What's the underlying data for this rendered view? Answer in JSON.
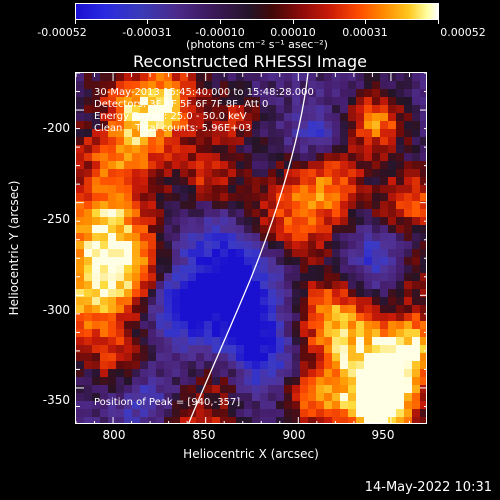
{
  "colorbar": {
    "tick_labels": [
      "-0.00052",
      "-0.00031",
      "-0.00010",
      "0.00010",
      "0.00031",
      "0.00052"
    ],
    "unit_label": "(photons cm⁻² s⁻¹ asec⁻²)"
  },
  "title": "Reconstructed RHESSI Image",
  "info": {
    "time_range": "30-May-2013 15:45:40.000 to 15:48:28.000",
    "detectors": "Detectors: 3F 4F 5F 6F 7F 8F, Att 0",
    "energy_range": "Energy Range: 25.0 - 50.0 keV",
    "clean": "Clean    Total counts: 5.96E+03",
    "peak": "Position of Peak = [940,-357]"
  },
  "axes": {
    "xlabel": "Heliocentric X (arcsec)",
    "ylabel": "Heliocentric Y (arcsec)",
    "xticks": [
      "800",
      "850",
      "900",
      "950"
    ],
    "yticks": [
      "-200",
      "-250",
      "-300",
      "-350"
    ],
    "xlim": [
      780,
      970
    ],
    "ylim": [
      -370,
      -180
    ]
  },
  "colors": {
    "negative": "#1a10d0",
    "zero": "#241428",
    "positive": "#ffffff",
    "limb_line": "#ffffff"
  },
  "timestamp": "14-May-2022 10:31"
}
